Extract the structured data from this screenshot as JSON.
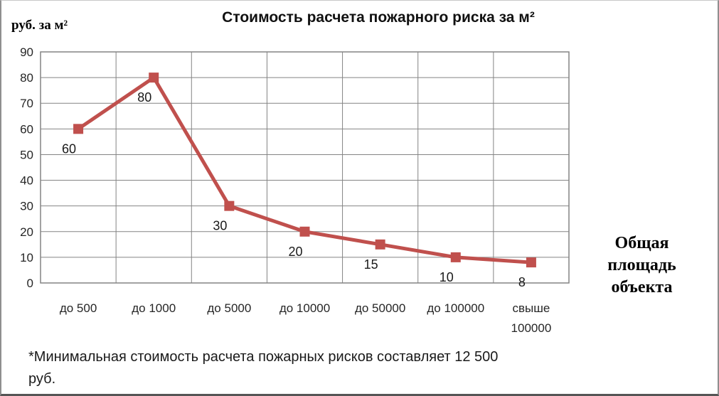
{
  "chart_data": {
    "type": "line",
    "title": "Стоимость расчета пожарного риска за м²",
    "ylabel": "руб. за м²",
    "xlabel": "Общая\nплощадь\nобъекта",
    "categories": [
      "до 500",
      "до 1000",
      "до 5000",
      "до 10000",
      "до 50000",
      "до 100000",
      "свыше\n100000"
    ],
    "values": [
      60,
      80,
      30,
      20,
      15,
      10,
      8
    ],
    "yticks": [
      0,
      10,
      20,
      30,
      40,
      50,
      60,
      70,
      80,
      90
    ],
    "ylim": [
      0,
      90
    ],
    "grid": true,
    "legend": "none",
    "marker": "square",
    "series_color": "#C0504D",
    "gridline_color": "#848484",
    "label_color": "#1a1a1a"
  },
  "footnote": "*Минимальная стоимость расчета пожарных рисков составляет 12 500\nруб."
}
